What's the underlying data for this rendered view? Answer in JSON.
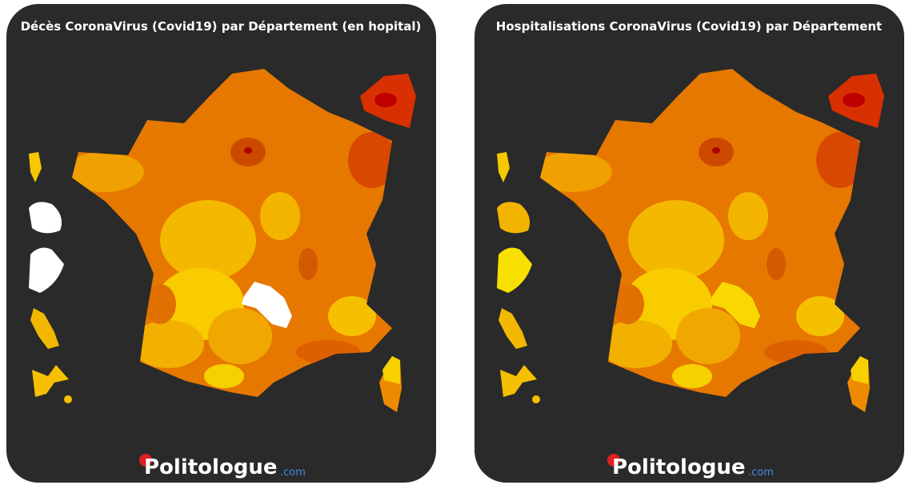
{
  "panels": [
    {
      "title": "Décès CoronaVirus (Covid19) par Département (en hopital)",
      "logo": {
        "name": "Politologue",
        "suffix": ".com"
      }
    },
    {
      "title": "Hospitalisations CoronaVirus (Covid19) par Département",
      "logo": {
        "name": "Politologue",
        "suffix": ".com"
      }
    }
  ]
}
